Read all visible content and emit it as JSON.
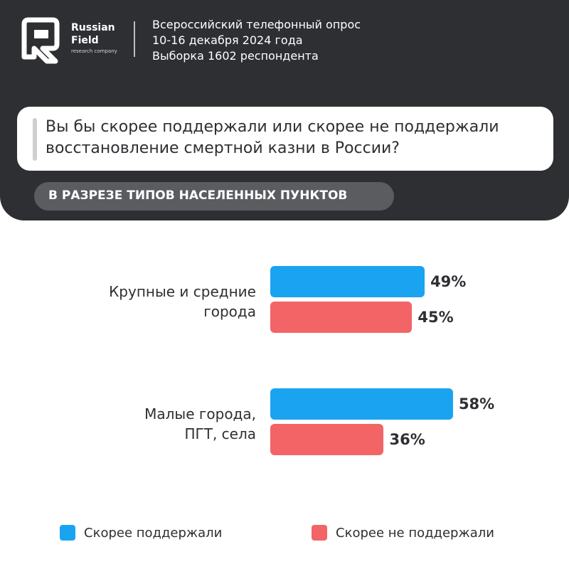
{
  "brand": {
    "name_line1": "Russian",
    "name_line2": "Field",
    "tagline": "research company"
  },
  "survey": {
    "line1": "Всероссийский телефонный опрос",
    "line2": "10-16 декабря 2024 года",
    "line3": "Выборка 1602 респондента"
  },
  "question": "Вы бы скорее поддержали или скорее не поддержали восстановление смертной казни в России?",
  "section_label": "В РАЗРЕЗЕ ТИПОВ НАСЕЛЕННЫХ ПУНКТОВ",
  "colors": {
    "support": "#1aa3f0",
    "oppose": "#f26466",
    "header_bg": "#2e2f33"
  },
  "chart_data": {
    "type": "bar",
    "orientation": "horizontal",
    "categories": [
      "Крупные и средние города",
      "Малые города, ПГТ, села"
    ],
    "category_lines": [
      [
        "Крупные и средние",
        "города"
      ],
      [
        "Малые города,",
        "ПГТ, села"
      ]
    ],
    "series": [
      {
        "name": "Скорее поддержали",
        "values": [
          49,
          58
        ],
        "labels": [
          "49%",
          "58%"
        ],
        "color": "#1aa3f0"
      },
      {
        "name": "Скорее не поддержали",
        "values": [
          45,
          36
        ],
        "labels": [
          "45%",
          "36%"
        ],
        "color": "#f26466"
      }
    ],
    "unit": "%",
    "legend_position": "bottom"
  }
}
